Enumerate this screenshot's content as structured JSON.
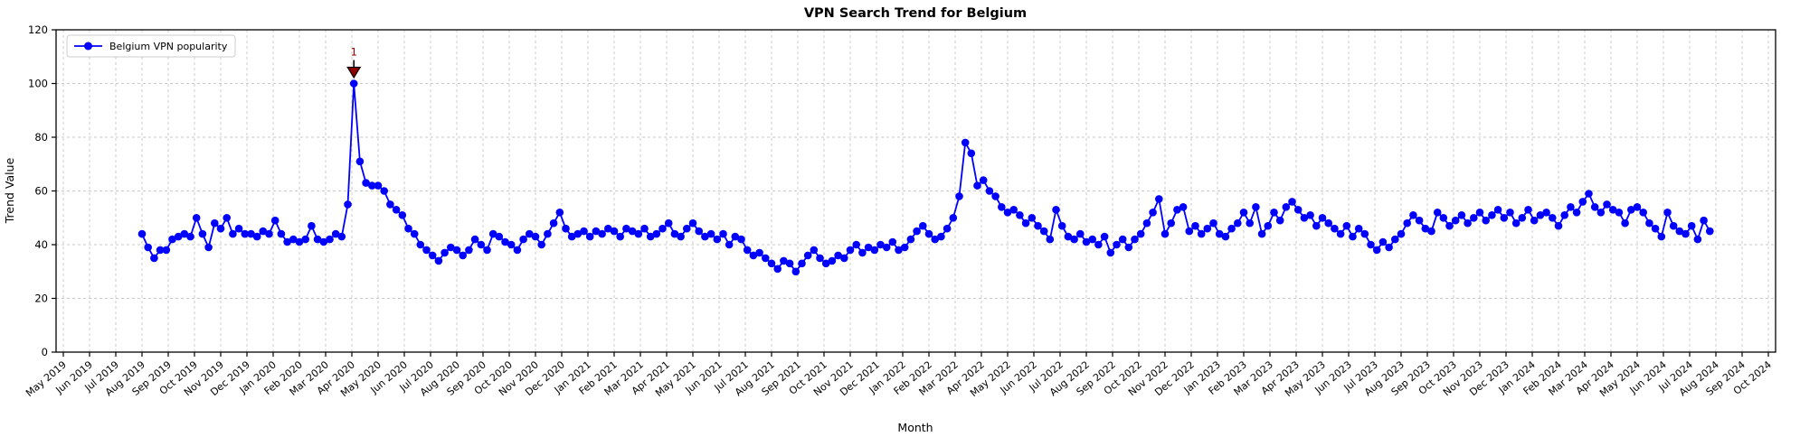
{
  "chart_data": {
    "type": "line",
    "title": "VPN Search Trend for Belgium",
    "xlabel": "Month",
    "ylabel": "Trend Value",
    "ylim": [
      0,
      120
    ],
    "yticks": [
      0,
      20,
      40,
      60,
      80,
      100,
      120
    ],
    "grid": true,
    "grid_style": "dashed",
    "legend_position": "upper-left",
    "x_tick_labels": [
      "May 2019",
      "Jun 2019",
      "Jul 2019",
      "Aug 2019",
      "Sep 2019",
      "Oct 2019",
      "Nov 2019",
      "Dec 2019",
      "Jan 2020",
      "Feb 2020",
      "Mar 2020",
      "Apr 2020",
      "May 2020",
      "Jun 2020",
      "Jul 2020",
      "Aug 2020",
      "Sep 2020",
      "Oct 2020",
      "Nov 2020",
      "Dec 2020",
      "Jan 2021",
      "Feb 2021",
      "Mar 2021",
      "Apr 2021",
      "May 2021",
      "Jun 2021",
      "Jul 2021",
      "Aug 2021",
      "Sep 2021",
      "Oct 2021",
      "Nov 2021",
      "Dec 2021",
      "Jan 2022",
      "Feb 2022",
      "Mar 2022",
      "Apr 2022",
      "May 2022",
      "Jun 2022",
      "Jul 2022",
      "Aug 2022",
      "Sep 2022",
      "Oct 2022",
      "Nov 2022",
      "Dec 2022",
      "Jan 2023",
      "Feb 2023",
      "Mar 2023",
      "Apr 2023",
      "May 2023",
      "Jun 2023",
      "Jul 2023",
      "Aug 2023",
      "Sep 2023",
      "Oct 2023",
      "Nov 2023",
      "Dec 2023",
      "Jan 2024",
      "Feb 2024",
      "Mar 2024",
      "Apr 2024",
      "May 2024",
      "Jun 2024",
      "Jul 2024",
      "Aug 2024",
      "Sep 2024",
      "Oct 2024"
    ],
    "series": [
      {
        "name": "Belgium VPN popularity",
        "color": "#0000ff",
        "marker": "circle",
        "cadence": "weekly",
        "x_start_month": "Aug 2019",
        "x_start_month_index": 3,
        "values": [
          44,
          39,
          35,
          38,
          38,
          42,
          43,
          44,
          43,
          50,
          44,
          39,
          48,
          46,
          50,
          44,
          46,
          44,
          44,
          43,
          45,
          44,
          49,
          44,
          41,
          42,
          41,
          42,
          47,
          42,
          41,
          42,
          44,
          43,
          55,
          100,
          71,
          63,
          62,
          62,
          60,
          55,
          53,
          51,
          46,
          44,
          40,
          38,
          36,
          34,
          37,
          39,
          38,
          36,
          38,
          42,
          40,
          38,
          44,
          43,
          41,
          40,
          38,
          42,
          44,
          43,
          40,
          44,
          48,
          52,
          46,
          43,
          44,
          45,
          43,
          45,
          44,
          46,
          45,
          43,
          46,
          45,
          44,
          46,
          43,
          44,
          46,
          48,
          44,
          43,
          46,
          48,
          45,
          43,
          44,
          42,
          44,
          40,
          43,
          42,
          38,
          36,
          37,
          35,
          33,
          31,
          34,
          33,
          30,
          33,
          36,
          38,
          35,
          33,
          34,
          36,
          35,
          38,
          40,
          37,
          39,
          38,
          40,
          39,
          41,
          38,
          39,
          42,
          45,
          47,
          44,
          42,
          43,
          46,
          50,
          58,
          78,
          74,
          62,
          64,
          60,
          58,
          54,
          52,
          53,
          51,
          48,
          50,
          47,
          45,
          42,
          53,
          47,
          43,
          42,
          44,
          41,
          42,
          40,
          43,
          37,
          40,
          42,
          39,
          42,
          44,
          48,
          52,
          57,
          44,
          48,
          53,
          54,
          45,
          47,
          44,
          46,
          48,
          44,
          43,
          46,
          48,
          52,
          48,
          54,
          44,
          47,
          52,
          49,
          54,
          56,
          53,
          50,
          51,
          47,
          50,
          48,
          46,
          44,
          47,
          43,
          46,
          44,
          40,
          38,
          41,
          39,
          42,
          44,
          48,
          51,
          49,
          46,
          45,
          52,
          50,
          47,
          49,
          51,
          48,
          50,
          52,
          49,
          51,
          53,
          50,
          52,
          48,
          50,
          53,
          49,
          51,
          52,
          50,
          47,
          51,
          54,
          52,
          56,
          59,
          54,
          52,
          55,
          53,
          52,
          48,
          53,
          54,
          52,
          48,
          46,
          43,
          52,
          47,
          45,
          44,
          47,
          42,
          49,
          45
        ]
      }
    ],
    "annotations": [
      {
        "label": "1",
        "attached_to": "series maximum",
        "at_value": 100,
        "marker": "triangle-down",
        "marker_fill": "#8b0000",
        "marker_edge": "#000000",
        "text_color": "#8b0000"
      }
    ],
    "colors": {
      "line": "#0000ff",
      "grid": "#c8c8c8",
      "spine": "#000000",
      "background": "#ffffff",
      "legend_border": "#cccccc"
    }
  }
}
